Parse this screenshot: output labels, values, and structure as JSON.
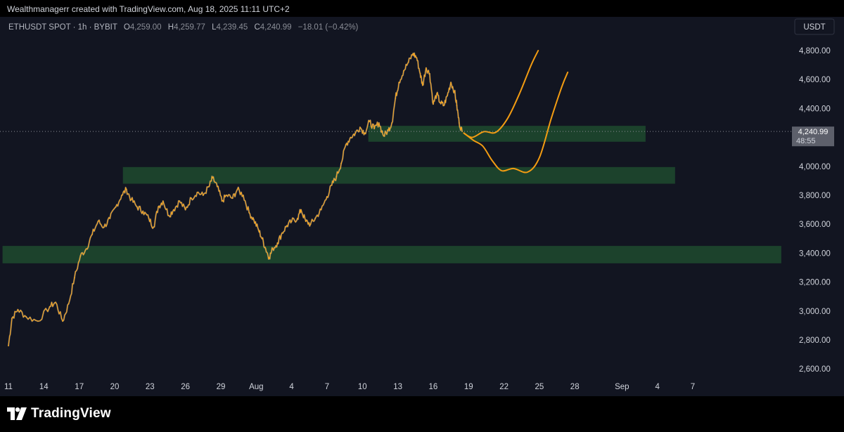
{
  "header": {
    "credit": "Wealthmanagerr created with TradingView.com, Aug 18, 2025 11:11 UTC+2"
  },
  "legend": {
    "symbol": "ETHUSDT SPOT · 1h · BYBIT",
    "o_label": "O",
    "o_value": "4,259.00",
    "h_label": "H",
    "h_value": "4,259.77",
    "l_label": "L",
    "l_value": "4,239.45",
    "c_label": "C",
    "c_value": "4,240.99",
    "change": "−18.01 (−0.42%)"
  },
  "currency_button": "USDT",
  "last_price": {
    "value": "4,240.99",
    "countdown": "48:55"
  },
  "footer": {
    "brand": "TradingView"
  },
  "colors": {
    "background": "#121521",
    "price_line": "#f5a623",
    "zone_fill": "#1f4a2e",
    "projection": "#f39c12",
    "axis_text": "#d1d4dc",
    "label_bg": "#5d606b"
  },
  "chart_data": {
    "type": "line",
    "title": "",
    "xlabel": "",
    "ylabel": "",
    "ylim": [
      2500,
      4880
    ],
    "y_ticks": [
      {
        "value": 4800,
        "label": "4,800.00"
      },
      {
        "value": 4600,
        "label": "4,600.00"
      },
      {
        "value": 4400,
        "label": "4,400.00"
      },
      {
        "value": 4000,
        "label": "4,000.00"
      },
      {
        "value": 3800,
        "label": "3,800.00"
      },
      {
        "value": 3600,
        "label": "3,600.00"
      },
      {
        "value": 3400,
        "label": "3,400.00"
      },
      {
        "value": 3200,
        "label": "3,200.00"
      },
      {
        "value": 3000,
        "label": "3,000.00"
      },
      {
        "value": 2800,
        "label": "2,800.00"
      },
      {
        "value": 2600,
        "label": "2,600.00"
      }
    ],
    "x_ticks": [
      {
        "d": 11,
        "label": "11"
      },
      {
        "d": 14,
        "label": "14"
      },
      {
        "d": 17,
        "label": "17"
      },
      {
        "d": 20,
        "label": "20"
      },
      {
        "d": 23,
        "label": "23"
      },
      {
        "d": 26,
        "label": "26"
      },
      {
        "d": 29,
        "label": "29"
      },
      {
        "d": 32,
        "label": "Aug"
      },
      {
        "d": 35,
        "label": "4"
      },
      {
        "d": 38,
        "label": "7"
      },
      {
        "d": 41,
        "label": "10"
      },
      {
        "d": 44,
        "label": "13"
      },
      {
        "d": 47,
        "label": "16"
      },
      {
        "d": 50,
        "label": "19"
      },
      {
        "d": 53,
        "label": "22"
      },
      {
        "d": 56,
        "label": "25"
      },
      {
        "d": 59,
        "label": "28"
      },
      {
        "d": 63,
        "label": "Sep"
      },
      {
        "d": 66,
        "label": "4"
      },
      {
        "d": 69,
        "label": "7"
      }
    ],
    "series": [
      {
        "values": [
          [
            11.0,
            2760
          ],
          [
            11.3,
            2950
          ],
          [
            11.8,
            3010
          ],
          [
            12.5,
            2960
          ],
          [
            13.5,
            2930
          ],
          [
            14.5,
            3030
          ],
          [
            15.0,
            3060
          ],
          [
            15.6,
            2930
          ],
          [
            16.1,
            3050
          ],
          [
            16.6,
            3230
          ],
          [
            17.1,
            3380
          ],
          [
            17.6,
            3430
          ],
          [
            18.1,
            3530
          ],
          [
            18.6,
            3620
          ],
          [
            19.1,
            3580
          ],
          [
            19.6,
            3640
          ],
          [
            20.1,
            3720
          ],
          [
            20.6,
            3800
          ],
          [
            21.0,
            3840
          ],
          [
            21.4,
            3770
          ],
          [
            21.9,
            3720
          ],
          [
            22.4,
            3690
          ],
          [
            22.9,
            3640
          ],
          [
            23.3,
            3580
          ],
          [
            23.7,
            3720
          ],
          [
            24.1,
            3760
          ],
          [
            24.6,
            3660
          ],
          [
            25.0,
            3700
          ],
          [
            25.5,
            3760
          ],
          [
            26.0,
            3700
          ],
          [
            26.5,
            3780
          ],
          [
            27.0,
            3820
          ],
          [
            27.5,
            3800
          ],
          [
            28.0,
            3860
          ],
          [
            28.3,
            3920
          ],
          [
            28.7,
            3860
          ],
          [
            29.1,
            3760
          ],
          [
            29.5,
            3800
          ],
          [
            30.0,
            3780
          ],
          [
            30.4,
            3840
          ],
          [
            30.9,
            3800
          ],
          [
            31.4,
            3680
          ],
          [
            31.8,
            3630
          ],
          [
            32.2,
            3560
          ],
          [
            32.5,
            3500
          ],
          [
            32.8,
            3430
          ],
          [
            33.1,
            3370
          ],
          [
            33.4,
            3430
          ],
          [
            33.8,
            3470
          ],
          [
            34.2,
            3540
          ],
          [
            34.6,
            3590
          ],
          [
            35.0,
            3620
          ],
          [
            35.5,
            3640
          ],
          [
            35.8,
            3700
          ],
          [
            36.2,
            3620
          ],
          [
            36.6,
            3600
          ],
          [
            37.0,
            3640
          ],
          [
            37.5,
            3700
          ],
          [
            38.0,
            3790
          ],
          [
            38.4,
            3870
          ],
          [
            38.8,
            3930
          ],
          [
            39.2,
            4020
          ],
          [
            39.6,
            4150
          ],
          [
            40.0,
            4200
          ],
          [
            40.4,
            4230
          ],
          [
            40.8,
            4270
          ],
          [
            41.2,
            4230
          ],
          [
            41.6,
            4310
          ],
          [
            42.0,
            4260
          ],
          [
            42.4,
            4300
          ],
          [
            42.8,
            4210
          ],
          [
            43.2,
            4250
          ],
          [
            43.5,
            4300
          ],
          [
            43.8,
            4470
          ],
          [
            44.1,
            4580
          ],
          [
            44.5,
            4660
          ],
          [
            44.9,
            4720
          ],
          [
            45.3,
            4780
          ],
          [
            45.6,
            4750
          ],
          [
            45.9,
            4640
          ],
          [
            46.1,
            4560
          ],
          [
            46.4,
            4680
          ],
          [
            46.7,
            4640
          ],
          [
            47.0,
            4430
          ],
          [
            47.3,
            4500
          ],
          [
            47.6,
            4440
          ],
          [
            47.9,
            4420
          ],
          [
            48.2,
            4490
          ],
          [
            48.5,
            4580
          ],
          [
            48.8,
            4520
          ],
          [
            49.0,
            4420
          ],
          [
            49.2,
            4300
          ],
          [
            49.45,
            4241
          ]
        ]
      }
    ],
    "zones": [
      {
        "d_start": 41.5,
        "d_end": 65.0,
        "y_low": 4170,
        "y_high": 4280
      },
      {
        "d_start": 20.7,
        "d_end": 67.5,
        "y_low": 3880,
        "y_high": 3995
      },
      {
        "d_start": 10.5,
        "d_end": 76.5,
        "y_low": 3330,
        "y_high": 3450
      }
    ],
    "projections": [
      [
        [
          49.6,
          4230
        ],
        [
          50.3,
          4200
        ],
        [
          51.3,
          4240
        ],
        [
          52.3,
          4235
        ],
        [
          53.3,
          4330
        ],
        [
          54.3,
          4500
        ],
        [
          55.3,
          4700
        ],
        [
          55.9,
          4800
        ]
      ],
      [
        [
          49.6,
          4230
        ],
        [
          50.4,
          4180
        ],
        [
          51.2,
          4140
        ],
        [
          52.0,
          4040
        ],
        [
          52.8,
          3970
        ],
        [
          53.8,
          3985
        ],
        [
          55.0,
          3960
        ],
        [
          56.0,
          4060
        ],
        [
          57.0,
          4330
        ],
        [
          57.9,
          4550
        ],
        [
          58.4,
          4650
        ]
      ]
    ],
    "last_price": 4240.99
  }
}
